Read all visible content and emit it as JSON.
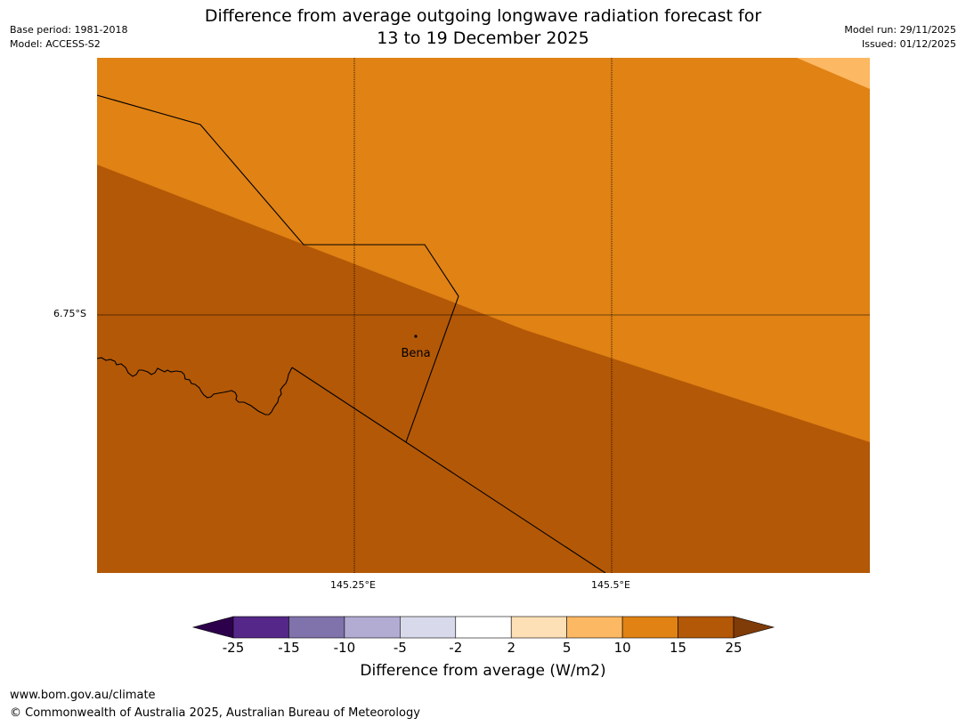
{
  "header": {
    "title_line1": "Difference from average outgoing longwave radiation forecast for",
    "title_line2": "13 to 19 December 2025",
    "base_period": "Base period: 1981-2018",
    "model": "Model: ACCESS-S2",
    "model_run": "Model run: 29/11/2025",
    "issued": "Issued: 01/12/2025"
  },
  "map": {
    "lat_label": "6.75°S",
    "lon_labels": [
      "145.25°E",
      "145.5°E"
    ],
    "place_label": "Bena",
    "colors": {
      "band_10_15": "#e08214",
      "band_15_25": "#b35806",
      "band_5_10": "#fdb863"
    }
  },
  "colorbar": {
    "ticks": [
      "-25",
      "-15",
      "-10",
      "-5",
      "-2",
      "2",
      "5",
      "10",
      "15",
      "25"
    ],
    "colors": [
      "#2d004b",
      "#542788",
      "#8073ac",
      "#b2abd2",
      "#d8daeb",
      "#ffffff",
      "#fee0b6",
      "#fdb863",
      "#e08214",
      "#b35806",
      "#7f3b08"
    ],
    "title": "Difference from average (W/m2)"
  },
  "footer": {
    "url": "www.bom.gov.au/climate",
    "copyright": "© Commonwealth of Australia 2025, Australian Bureau of Meteorology"
  }
}
